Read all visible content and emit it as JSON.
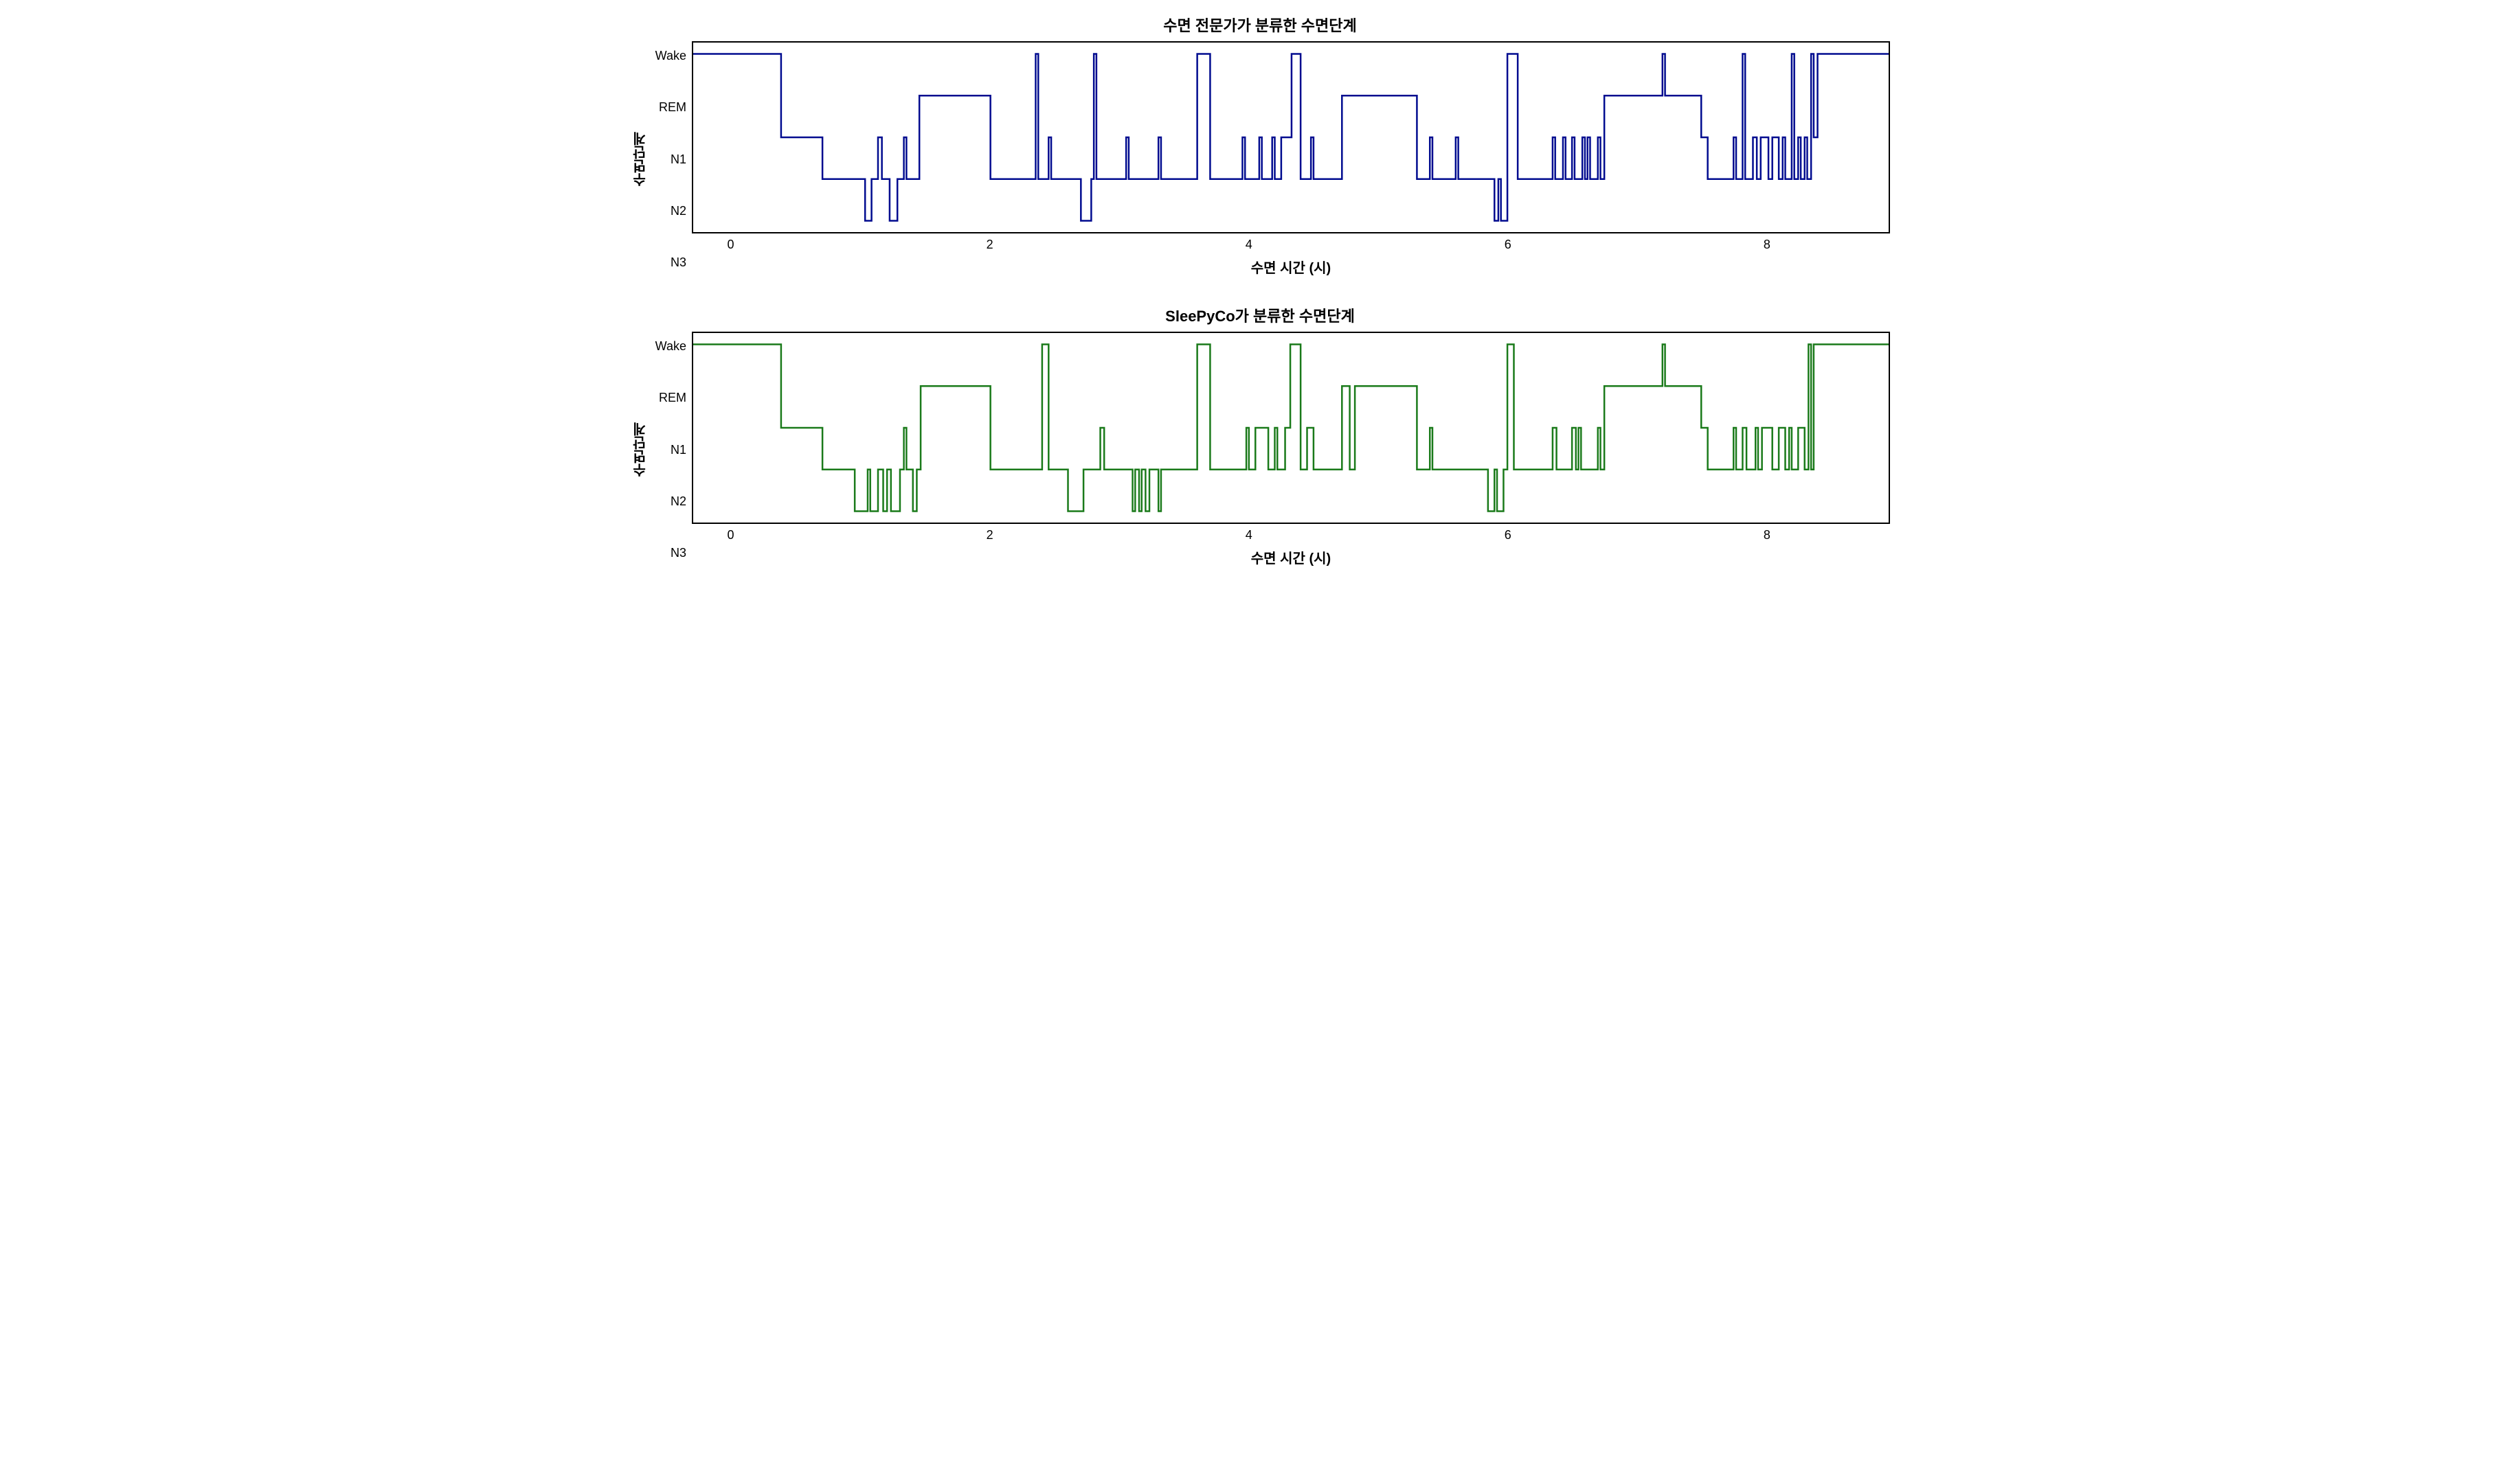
{
  "figure": {
    "background_color": "#ffffff",
    "border_color": "#000000",
    "border_width": 2,
    "font_family": "sans-serif",
    "title_fontsize": 22,
    "tick_fontsize": 18,
    "label_fontsize": 20
  },
  "y_axis": {
    "label": "수면단계",
    "tick_labels_top_to_bottom": [
      "Wake",
      "REM",
      "N1",
      "N2",
      "N3"
    ],
    "level_values": {
      "Wake": 4,
      "REM": 3,
      "N1": 2,
      "N2": 1,
      "N3": 0
    },
    "ylim": [
      0,
      4
    ]
  },
  "x_axis": {
    "label": "수면 시간 (시)",
    "tick_values": [
      0,
      2,
      4,
      6,
      8
    ],
    "xlim": [
      -0.3,
      8.95
    ]
  },
  "panels": [
    {
      "id": "expert",
      "title": "수면 전문가가 분류한 수면단계",
      "line_color": "#000b8f",
      "line_width": 2.5,
      "segments": [
        [
          -0.3,
          4
        ],
        [
          0.38,
          4
        ],
        [
          0.38,
          2
        ],
        [
          0.7,
          2
        ],
        [
          0.7,
          1
        ],
        [
          1.03,
          1
        ],
        [
          1.03,
          0
        ],
        [
          1.08,
          0
        ],
        [
          1.08,
          1
        ],
        [
          1.13,
          1
        ],
        [
          1.13,
          2
        ],
        [
          1.16,
          2
        ],
        [
          1.16,
          1
        ],
        [
          1.22,
          1
        ],
        [
          1.22,
          0
        ],
        [
          1.28,
          0
        ],
        [
          1.28,
          1
        ],
        [
          1.33,
          1
        ],
        [
          1.33,
          2
        ],
        [
          1.35,
          2
        ],
        [
          1.35,
          1
        ],
        [
          1.45,
          1
        ],
        [
          1.45,
          3
        ],
        [
          2.0,
          3
        ],
        [
          2.0,
          1
        ],
        [
          2.35,
          1
        ],
        [
          2.35,
          4
        ],
        [
          2.37,
          4
        ],
        [
          2.37,
          1
        ],
        [
          2.45,
          1
        ],
        [
          2.45,
          2
        ],
        [
          2.47,
          2
        ],
        [
          2.47,
          1
        ],
        [
          2.7,
          1
        ],
        [
          2.7,
          0
        ],
        [
          2.78,
          0
        ],
        [
          2.78,
          1
        ],
        [
          2.8,
          1
        ],
        [
          2.8,
          4
        ],
        [
          2.82,
          4
        ],
        [
          2.82,
          1
        ],
        [
          3.05,
          1
        ],
        [
          3.05,
          2
        ],
        [
          3.07,
          2
        ],
        [
          3.07,
          1
        ],
        [
          3.3,
          1
        ],
        [
          3.3,
          2
        ],
        [
          3.32,
          2
        ],
        [
          3.32,
          1
        ],
        [
          3.6,
          1
        ],
        [
          3.6,
          4
        ],
        [
          3.7,
          4
        ],
        [
          3.7,
          1
        ],
        [
          3.95,
          1
        ],
        [
          3.95,
          2
        ],
        [
          3.97,
          2
        ],
        [
          3.97,
          1
        ],
        [
          4.08,
          1
        ],
        [
          4.08,
          2
        ],
        [
          4.1,
          2
        ],
        [
          4.1,
          1
        ],
        [
          4.18,
          1
        ],
        [
          4.18,
          2
        ],
        [
          4.2,
          2
        ],
        [
          4.2,
          1
        ],
        [
          4.25,
          1
        ],
        [
          4.25,
          2
        ],
        [
          4.33,
          2
        ],
        [
          4.33,
          4
        ],
        [
          4.4,
          4
        ],
        [
          4.4,
          1
        ],
        [
          4.48,
          1
        ],
        [
          4.48,
          2
        ],
        [
          4.5,
          2
        ],
        [
          4.5,
          1
        ],
        [
          4.72,
          1
        ],
        [
          4.72,
          3
        ],
        [
          5.3,
          3
        ],
        [
          5.3,
          1
        ],
        [
          5.4,
          1
        ],
        [
          5.4,
          2
        ],
        [
          5.42,
          2
        ],
        [
          5.42,
          1
        ],
        [
          5.6,
          1
        ],
        [
          5.6,
          2
        ],
        [
          5.62,
          2
        ],
        [
          5.62,
          1
        ],
        [
          5.9,
          1
        ],
        [
          5.9,
          0
        ],
        [
          5.93,
          0
        ],
        [
          5.93,
          1
        ],
        [
          5.95,
          1
        ],
        [
          5.95,
          0
        ],
        [
          6.0,
          0
        ],
        [
          6.0,
          4
        ],
        [
          6.08,
          4
        ],
        [
          6.08,
          1
        ],
        [
          6.35,
          1
        ],
        [
          6.35,
          2
        ],
        [
          6.37,
          2
        ],
        [
          6.37,
          1
        ],
        [
          6.43,
          1
        ],
        [
          6.43,
          2
        ],
        [
          6.45,
          2
        ],
        [
          6.45,
          1
        ],
        [
          6.5,
          1
        ],
        [
          6.5,
          2
        ],
        [
          6.52,
          2
        ],
        [
          6.52,
          1
        ],
        [
          6.58,
          1
        ],
        [
          6.58,
          2
        ],
        [
          6.6,
          2
        ],
        [
          6.6,
          1
        ],
        [
          6.62,
          1
        ],
        [
          6.62,
          2
        ],
        [
          6.64,
          2
        ],
        [
          6.64,
          1
        ],
        [
          6.7,
          1
        ],
        [
          6.7,
          2
        ],
        [
          6.72,
          2
        ],
        [
          6.72,
          1
        ],
        [
          6.75,
          1
        ],
        [
          6.75,
          3
        ],
        [
          7.2,
          3
        ],
        [
          7.2,
          4
        ],
        [
          7.22,
          4
        ],
        [
          7.22,
          3
        ],
        [
          7.5,
          3
        ],
        [
          7.5,
          2
        ],
        [
          7.55,
          2
        ],
        [
          7.55,
          1
        ],
        [
          7.75,
          1
        ],
        [
          7.75,
          2
        ],
        [
          7.77,
          2
        ],
        [
          7.77,
          1
        ],
        [
          7.82,
          1
        ],
        [
          7.82,
          4
        ],
        [
          7.84,
          4
        ],
        [
          7.84,
          1
        ],
        [
          7.9,
          1
        ],
        [
          7.9,
          2
        ],
        [
          7.93,
          2
        ],
        [
          7.93,
          1
        ],
        [
          7.96,
          1
        ],
        [
          7.96,
          2
        ],
        [
          8.02,
          2
        ],
        [
          8.02,
          1
        ],
        [
          8.05,
          1
        ],
        [
          8.05,
          2
        ],
        [
          8.1,
          2
        ],
        [
          8.1,
          1
        ],
        [
          8.13,
          1
        ],
        [
          8.13,
          2
        ],
        [
          8.15,
          2
        ],
        [
          8.15,
          1
        ],
        [
          8.2,
          1
        ],
        [
          8.2,
          4
        ],
        [
          8.22,
          4
        ],
        [
          8.22,
          1
        ],
        [
          8.25,
          1
        ],
        [
          8.25,
          2
        ],
        [
          8.27,
          2
        ],
        [
          8.27,
          1
        ],
        [
          8.3,
          1
        ],
        [
          8.3,
          2
        ],
        [
          8.32,
          2
        ],
        [
          8.32,
          1
        ],
        [
          8.35,
          1
        ],
        [
          8.35,
          4
        ],
        [
          8.37,
          4
        ],
        [
          8.37,
          2
        ],
        [
          8.4,
          2
        ],
        [
          8.4,
          4
        ],
        [
          8.95,
          4
        ]
      ]
    },
    {
      "id": "sleepyco",
      "title": "SleePyCo가 분류한 수면단계",
      "line_color": "#1a7a1a",
      "line_width": 2.5,
      "segments": [
        [
          -0.3,
          4
        ],
        [
          0.38,
          4
        ],
        [
          0.38,
          2
        ],
        [
          0.7,
          2
        ],
        [
          0.7,
          1
        ],
        [
          0.95,
          1
        ],
        [
          0.95,
          0
        ],
        [
          1.05,
          0
        ],
        [
          1.05,
          1
        ],
        [
          1.07,
          1
        ],
        [
          1.07,
          0
        ],
        [
          1.13,
          0
        ],
        [
          1.13,
          1
        ],
        [
          1.17,
          1
        ],
        [
          1.17,
          0
        ],
        [
          1.2,
          0
        ],
        [
          1.2,
          1
        ],
        [
          1.23,
          1
        ],
        [
          1.23,
          0
        ],
        [
          1.3,
          0
        ],
        [
          1.3,
          1
        ],
        [
          1.33,
          1
        ],
        [
          1.33,
          2
        ],
        [
          1.35,
          2
        ],
        [
          1.35,
          1
        ],
        [
          1.4,
          1
        ],
        [
          1.4,
          0
        ],
        [
          1.43,
          0
        ],
        [
          1.43,
          1
        ],
        [
          1.46,
          1
        ],
        [
          1.46,
          3
        ],
        [
          2.0,
          3
        ],
        [
          2.0,
          1
        ],
        [
          2.4,
          1
        ],
        [
          2.4,
          4
        ],
        [
          2.45,
          4
        ],
        [
          2.45,
          1
        ],
        [
          2.6,
          1
        ],
        [
          2.6,
          0
        ],
        [
          2.72,
          0
        ],
        [
          2.72,
          1
        ],
        [
          2.85,
          1
        ],
        [
          2.85,
          2
        ],
        [
          2.88,
          2
        ],
        [
          2.88,
          1
        ],
        [
          3.1,
          1
        ],
        [
          3.1,
          0
        ],
        [
          3.12,
          0
        ],
        [
          3.12,
          1
        ],
        [
          3.15,
          1
        ],
        [
          3.15,
          0
        ],
        [
          3.17,
          0
        ],
        [
          3.17,
          1
        ],
        [
          3.2,
          1
        ],
        [
          3.2,
          0
        ],
        [
          3.23,
          0
        ],
        [
          3.23,
          1
        ],
        [
          3.3,
          1
        ],
        [
          3.3,
          0
        ],
        [
          3.32,
          0
        ],
        [
          3.32,
          1
        ],
        [
          3.6,
          1
        ],
        [
          3.6,
          4
        ],
        [
          3.7,
          4
        ],
        [
          3.7,
          1
        ],
        [
          3.98,
          1
        ],
        [
          3.98,
          2
        ],
        [
          4.0,
          2
        ],
        [
          4.0,
          1
        ],
        [
          4.05,
          1
        ],
        [
          4.05,
          2
        ],
        [
          4.15,
          2
        ],
        [
          4.15,
          1
        ],
        [
          4.2,
          1
        ],
        [
          4.2,
          2
        ],
        [
          4.22,
          2
        ],
        [
          4.22,
          1
        ],
        [
          4.28,
          1
        ],
        [
          4.28,
          2
        ],
        [
          4.32,
          2
        ],
        [
          4.32,
          4
        ],
        [
          4.4,
          4
        ],
        [
          4.4,
          1
        ],
        [
          4.45,
          1
        ],
        [
          4.45,
          2
        ],
        [
          4.5,
          2
        ],
        [
          4.5,
          1
        ],
        [
          4.72,
          1
        ],
        [
          4.72,
          3
        ],
        [
          4.78,
          3
        ],
        [
          4.78,
          1
        ],
        [
          4.82,
          1
        ],
        [
          4.82,
          3
        ],
        [
          5.3,
          3
        ],
        [
          5.3,
          1
        ],
        [
          5.4,
          1
        ],
        [
          5.4,
          2
        ],
        [
          5.42,
          2
        ],
        [
          5.42,
          1
        ],
        [
          5.85,
          1
        ],
        [
          5.85,
          0
        ],
        [
          5.9,
          0
        ],
        [
          5.9,
          1
        ],
        [
          5.92,
          1
        ],
        [
          5.92,
          0
        ],
        [
          5.97,
          0
        ],
        [
          5.97,
          1
        ],
        [
          6.0,
          1
        ],
        [
          6.0,
          4
        ],
        [
          6.05,
          4
        ],
        [
          6.05,
          1
        ],
        [
          6.35,
          1
        ],
        [
          6.35,
          2
        ],
        [
          6.38,
          2
        ],
        [
          6.38,
          1
        ],
        [
          6.5,
          1
        ],
        [
          6.5,
          2
        ],
        [
          6.53,
          2
        ],
        [
          6.53,
          1
        ],
        [
          6.55,
          1
        ],
        [
          6.55,
          2
        ],
        [
          6.57,
          2
        ],
        [
          6.57,
          1
        ],
        [
          6.7,
          1
        ],
        [
          6.7,
          2
        ],
        [
          6.72,
          2
        ],
        [
          6.72,
          1
        ],
        [
          6.75,
          1
        ],
        [
          6.75,
          3
        ],
        [
          7.2,
          3
        ],
        [
          7.2,
          4
        ],
        [
          7.22,
          4
        ],
        [
          7.22,
          3
        ],
        [
          7.5,
          3
        ],
        [
          7.5,
          2
        ],
        [
          7.55,
          2
        ],
        [
          7.55,
          1
        ],
        [
          7.75,
          1
        ],
        [
          7.75,
          2
        ],
        [
          7.77,
          2
        ],
        [
          7.77,
          1
        ],
        [
          7.82,
          1
        ],
        [
          7.82,
          2
        ],
        [
          7.85,
          2
        ],
        [
          7.85,
          1
        ],
        [
          7.92,
          1
        ],
        [
          7.92,
          2
        ],
        [
          7.94,
          2
        ],
        [
          7.94,
          1
        ],
        [
          7.97,
          1
        ],
        [
          7.97,
          2
        ],
        [
          8.05,
          2
        ],
        [
          8.05,
          1
        ],
        [
          8.1,
          1
        ],
        [
          8.1,
          2
        ],
        [
          8.15,
          2
        ],
        [
          8.15,
          1
        ],
        [
          8.18,
          1
        ],
        [
          8.18,
          2
        ],
        [
          8.2,
          2
        ],
        [
          8.2,
          1
        ],
        [
          8.25,
          1
        ],
        [
          8.25,
          2
        ],
        [
          8.3,
          2
        ],
        [
          8.3,
          1
        ],
        [
          8.33,
          1
        ],
        [
          8.33,
          4
        ],
        [
          8.35,
          4
        ],
        [
          8.35,
          1
        ],
        [
          8.37,
          1
        ],
        [
          8.37,
          4
        ],
        [
          8.95,
          4
        ]
      ]
    }
  ]
}
